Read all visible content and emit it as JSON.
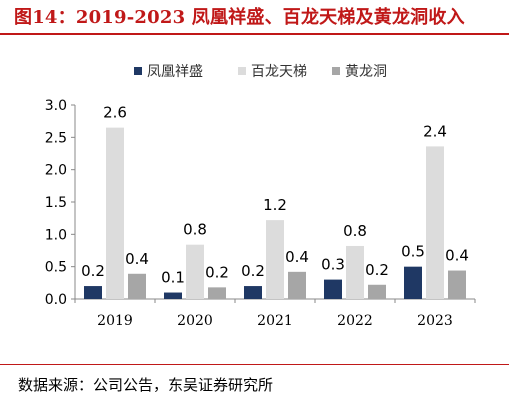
{
  "figure": {
    "title": "图14：2019-2023 凤凰祥盛、百龙天梯及黄龙洞收入",
    "source": "数据来源：公司公告，东吴证券研究所"
  },
  "chart_data": {
    "type": "bar",
    "title": "",
    "xlabel": "",
    "ylabel": "",
    "categories": [
      "2019",
      "2020",
      "2021",
      "2022",
      "2023"
    ],
    "series": [
      {
        "name": "凤凰祥盛",
        "values": [
          0.2,
          0.1,
          0.2,
          0.3,
          0.5
        ],
        "labels": [
          "0.2",
          "0.1",
          "0.2",
          "0.3",
          "0.5"
        ],
        "color": "#1f3864"
      },
      {
        "name": "百龙天梯",
        "values": [
          2.65,
          0.84,
          1.22,
          0.82,
          2.36
        ],
        "labels": [
          "2.6",
          "0.8",
          "1.2",
          "0.8",
          "2.4"
        ],
        "color": "#dcdcdc"
      },
      {
        "name": "黄龙洞",
        "values": [
          0.39,
          0.18,
          0.42,
          0.22,
          0.44
        ],
        "labels": [
          "0.4",
          "0.2",
          "0.4",
          "0.2",
          "0.4"
        ],
        "color": "#a6a6a6"
      }
    ],
    "ylim": [
      0,
      3.0
    ],
    "yticks": [
      "0.0",
      "0.5",
      "1.0",
      "1.5",
      "2.0",
      "2.5",
      "3.0"
    ],
    "grid": false,
    "legend_position": "top-center"
  }
}
